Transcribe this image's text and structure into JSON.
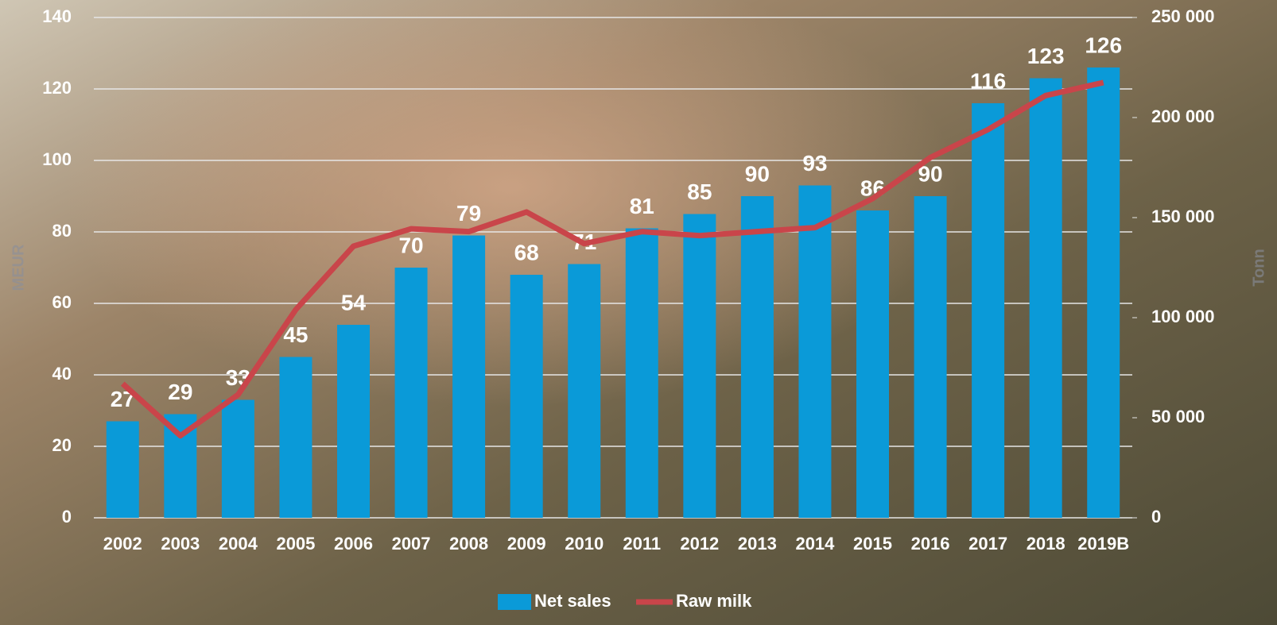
{
  "chart_data": {
    "type": "bar-line",
    "categories": [
      "2002",
      "2003",
      "2004",
      "2005",
      "2006",
      "2007",
      "2008",
      "2009",
      "2010",
      "2011",
      "2012",
      "2013",
      "2014",
      "2015",
      "2016",
      "2017",
      "2018",
      "2019B"
    ],
    "series": [
      {
        "name": "Net sales",
        "type": "bar",
        "color": "#0a9ad8",
        "values": [
          27,
          29,
          33,
          45,
          54,
          70,
          79,
          68,
          71,
          81,
          85,
          90,
          93,
          86,
          90,
          116,
          123,
          126
        ]
      },
      {
        "name": "Raw milk",
        "type": "line",
        "axis": "y2",
        "color": "#c9454a",
        "values": [
          67000,
          41000,
          61500,
          104000,
          135700,
          144400,
          143000,
          152800,
          137000,
          143000,
          141000,
          143000,
          145000,
          159500,
          180000,
          194000,
          211000,
          217500
        ]
      }
    ],
    "ylabel": "MEUR",
    "y2label": "Tonn",
    "ylim": [
      0,
      140
    ],
    "yticks": [
      0,
      20,
      40,
      60,
      80,
      100,
      120,
      140
    ],
    "y2lim": [
      0,
      250000
    ],
    "y2ticks": [
      0,
      {
        "value": 50000,
        "label": "50 000"
      },
      {
        "value": 100000,
        "label": "100 000"
      },
      {
        "value": 150000,
        "label": "150 000"
      },
      {
        "value": 200000,
        "label": "200 000"
      },
      {
        "value": 250000,
        "label": "250 000"
      }
    ],
    "grid": true
  }
}
